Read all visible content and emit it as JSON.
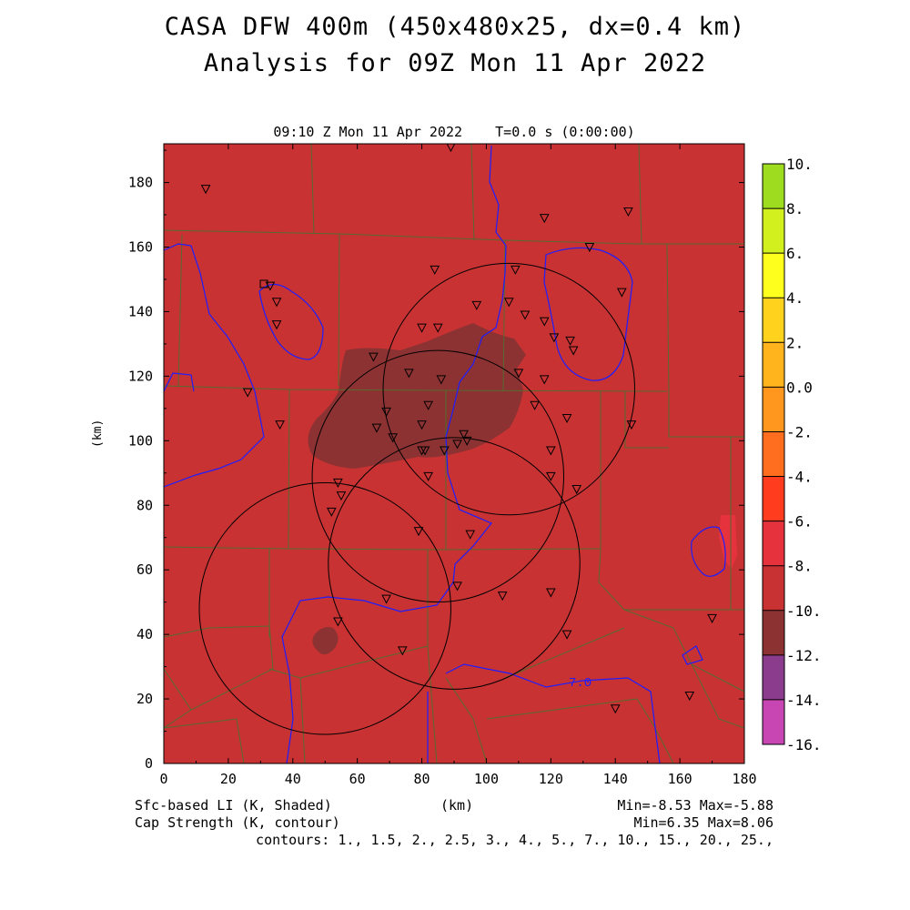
{
  "title": {
    "line1": "CASA DFW 400m (450x480x25, dx=0.4 km)",
    "line2": "Analysis for 09Z Mon 11 Apr 2022"
  },
  "subtitle": "09:10 Z Mon 11 Apr 2022    T=0.0 s (0:00:00)",
  "axes": {
    "x_label": "(km)",
    "y_label": "(km)",
    "x_ticks": [
      "0",
      "20",
      "40",
      "60",
      "80",
      "100",
      "120",
      "140",
      "160",
      "180"
    ],
    "y_ticks": [
      "0",
      "20",
      "40",
      "60",
      "80",
      "100",
      "120",
      "140",
      "160",
      "180"
    ]
  },
  "legend": {
    "shaded": "Sfc-based LI (K, Shaded)",
    "contour": "Cap Strength (K, contour)",
    "shaded_stats": "Min=-8.53 Max=-5.88",
    "contour_stats": "Min=6.35 Max=8.06",
    "contour_levels": "contours: 1., 1.5, 2., 2.5, 3., 4., 5., 7., 10., 15., 20., 25.,"
  },
  "contour_label": "7.0",
  "colorbar": {
    "labels": [
      "10.",
      "8.",
      "6.",
      "4.",
      "2.",
      "0.0",
      "-2.",
      "-4.",
      "-6.",
      "-8.",
      "-10.",
      "-12.",
      "-14.",
      "-16."
    ],
    "colors": [
      "#9ddc1e",
      "#d2f01e",
      "#ffff1e",
      "#ffd21e",
      "#ffb41e",
      "#ff961e",
      "#ff6e1e",
      "#ff3c1e",
      "#e6323c",
      "#c83232",
      "#8c3232",
      "#8c3c8c",
      "#c846b4",
      "#dc3cdc"
    ]
  },
  "chart_data": {
    "type": "map",
    "x_range_km": [
      0,
      180
    ],
    "y_range_km": [
      0,
      192
    ],
    "field_shaded": "Sfc-based LI (K)",
    "background_value_class": "-8 to -6",
    "background_color": "#c83232",
    "anomaly_color": "#8c3232",
    "radar_rings": [
      {
        "center_km": [
          107,
          116
        ],
        "radius_km": 39
      },
      {
        "center_km": [
          85,
          89
        ],
        "radius_km": 39
      },
      {
        "center_km": [
          50,
          48
        ],
        "radius_km": 39
      },
      {
        "center_km": [
          90,
          62
        ],
        "radius_km": 39
      }
    ],
    "stations_km": [
      [
        13,
        178
      ],
      [
        89,
        191
      ],
      [
        118,
        169
      ],
      [
        144,
        171
      ],
      [
        132,
        160
      ],
      [
        84,
        153
      ],
      [
        109,
        153
      ],
      [
        142,
        146
      ],
      [
        107,
        143
      ],
      [
        33,
        148
      ],
      [
        35,
        143
      ],
      [
        35,
        136
      ],
      [
        80,
        135
      ],
      [
        85,
        135
      ],
      [
        97,
        142
      ],
      [
        112,
        139
      ],
      [
        118,
        137
      ],
      [
        121,
        132
      ],
      [
        126,
        131
      ],
      [
        127,
        128
      ],
      [
        110,
        121
      ],
      [
        118,
        119
      ],
      [
        76,
        121
      ],
      [
        65,
        126
      ],
      [
        86,
        119
      ],
      [
        82,
        111
      ],
      [
        69,
        109
      ],
      [
        66,
        104
      ],
      [
        71,
        101
      ],
      [
        80,
        105
      ],
      [
        93,
        102
      ],
      [
        94,
        100
      ],
      [
        91,
        99
      ],
      [
        80,
        97
      ],
      [
        81,
        97
      ],
      [
        87,
        97
      ],
      [
        115,
        111
      ],
      [
        125,
        107
      ],
      [
        145,
        105
      ],
      [
        120,
        97
      ],
      [
        120,
        89
      ],
      [
        82,
        89
      ],
      [
        128,
        85
      ],
      [
        54,
        87
      ],
      [
        55,
        83
      ],
      [
        52,
        78
      ],
      [
        79,
        72
      ],
      [
        95,
        71
      ],
      [
        26,
        115
      ],
      [
        36,
        105
      ],
      [
        91,
        55
      ],
      [
        105,
        52
      ],
      [
        120,
        53
      ],
      [
        69,
        51
      ],
      [
        54,
        44
      ],
      [
        125,
        40
      ],
      [
        74,
        35
      ],
      [
        140,
        17
      ],
      [
        163,
        21
      ],
      [
        170,
        45
      ]
    ]
  }
}
